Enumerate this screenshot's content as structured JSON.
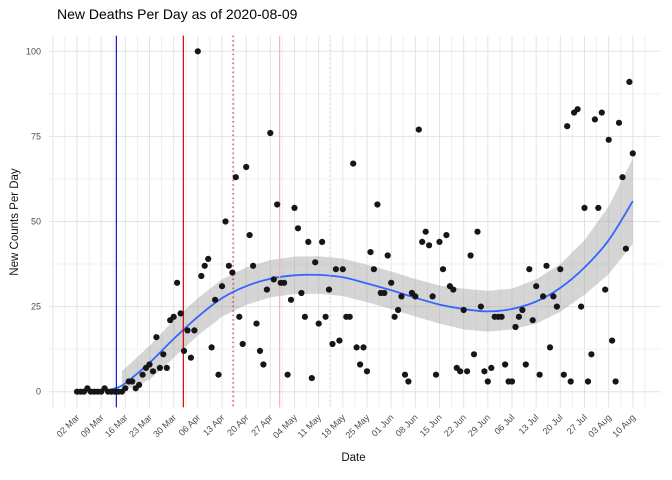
{
  "chart_data": {
    "type": "scatter",
    "title": "New Deaths Per Day as of 2020-08-09",
    "xlabel": "Date",
    "ylabel": "New Counts Per Day",
    "x_unit": "days since 02 Mar 2020, one point per day",
    "x_tick_labels": [
      "02 Mar",
      "09 Mar",
      "16 Mar",
      "23 Mar",
      "30 Mar",
      "06 Apr",
      "13 Apr",
      "20 Apr",
      "27 Apr",
      "04 May",
      "11 May",
      "18 May",
      "25 May",
      "01 Jun",
      "08 Jun",
      "15 Jun",
      "22 Jun",
      "29 Jun",
      "06 Jul",
      "13 Jul",
      "20 Jul",
      "27 Jul",
      "03 Aug",
      "10 Aug"
    ],
    "y_tick_labels": [
      "0",
      "25",
      "50",
      "75",
      "100"
    ],
    "y_ticks": [
      0,
      25,
      50,
      75,
      100
    ],
    "ylim": [
      -5,
      105
    ],
    "grid": {
      "major_color": "#e3e3e3",
      "minor_color": "#f0f0f0",
      "background": "#ffffff"
    },
    "point_color": "#161616",
    "points_day_value": [
      [
        0,
        0
      ],
      [
        1,
        0
      ],
      [
        2,
        0
      ],
      [
        3,
        1
      ],
      [
        4,
        0
      ],
      [
        5,
        0
      ],
      [
        6,
        0
      ],
      [
        7,
        0
      ],
      [
        8,
        1
      ],
      [
        9,
        0
      ],
      [
        10,
        0
      ],
      [
        11,
        0
      ],
      [
        12,
        0
      ],
      [
        13,
        0
      ],
      [
        14,
        1
      ],
      [
        15,
        3
      ],
      [
        16,
        3
      ],
      [
        17,
        1
      ],
      [
        18,
        2
      ],
      [
        19,
        5
      ],
      [
        20,
        7
      ],
      [
        21,
        8
      ],
      [
        22,
        6
      ],
      [
        23,
        16
      ],
      [
        24,
        7
      ],
      [
        25,
        11
      ],
      [
        26,
        7
      ],
      [
        27,
        21
      ],
      [
        28,
        22
      ],
      [
        29,
        32
      ],
      [
        30,
        23
      ],
      [
        31,
        12
      ],
      [
        32,
        18
      ],
      [
        33,
        10
      ],
      [
        34,
        18
      ],
      [
        35,
        100
      ],
      [
        36,
        34
      ],
      [
        37,
        37
      ],
      [
        38,
        39
      ],
      [
        39,
        13
      ],
      [
        40,
        27
      ],
      [
        41,
        5
      ],
      [
        42,
        31
      ],
      [
        43,
        50
      ],
      [
        44,
        37
      ],
      [
        45,
        35
      ],
      [
        46,
        63
      ],
      [
        47,
        22
      ],
      [
        48,
        14
      ],
      [
        49,
        66
      ],
      [
        50,
        46
      ],
      [
        51,
        37
      ],
      [
        52,
        20
      ],
      [
        53,
        12
      ],
      [
        54,
        8
      ],
      [
        55,
        30
      ],
      [
        56,
        76
      ],
      [
        57,
        33
      ],
      [
        58,
        55
      ],
      [
        59,
        32
      ],
      [
        60,
        32
      ],
      [
        61,
        5
      ],
      [
        62,
        27
      ],
      [
        63,
        54
      ],
      [
        64,
        48
      ],
      [
        65,
        29
      ],
      [
        66,
        22
      ],
      [
        67,
        44
      ],
      [
        68,
        4
      ],
      [
        69,
        38
      ],
      [
        70,
        20
      ],
      [
        71,
        44
      ],
      [
        72,
        22
      ],
      [
        73,
        30
      ],
      [
        74,
        14
      ],
      [
        75,
        36
      ],
      [
        76,
        15
      ],
      [
        77,
        36
      ],
      [
        78,
        22
      ],
      [
        79,
        22
      ],
      [
        80,
        67
      ],
      [
        81,
        13
      ],
      [
        82,
        8
      ],
      [
        83,
        13
      ],
      [
        84,
        6
      ],
      [
        85,
        41
      ],
      [
        86,
        36
      ],
      [
        87,
        55
      ],
      [
        88,
        29
      ],
      [
        89,
        29
      ],
      [
        90,
        40
      ],
      [
        91,
        32
      ],
      [
        92,
        22
      ],
      [
        93,
        24
      ],
      [
        94,
        28
      ],
      [
        95,
        5
      ],
      [
        96,
        3
      ],
      [
        97,
        29
      ],
      [
        98,
        28
      ],
      [
        99,
        77
      ],
      [
        100,
        44
      ],
      [
        101,
        47
      ],
      [
        102,
        43
      ],
      [
        103,
        28
      ],
      [
        104,
        5
      ],
      [
        105,
        44
      ],
      [
        106,
        36
      ],
      [
        107,
        46
      ],
      [
        108,
        31
      ],
      [
        109,
        30
      ],
      [
        110,
        7
      ],
      [
        111,
        6
      ],
      [
        112,
        24
      ],
      [
        113,
        6
      ],
      [
        114,
        40
      ],
      [
        115,
        11
      ],
      [
        116,
        47
      ],
      [
        117,
        25
      ],
      [
        118,
        6
      ],
      [
        119,
        3
      ],
      [
        120,
        7
      ],
      [
        121,
        22
      ],
      [
        122,
        22
      ],
      [
        123,
        22
      ],
      [
        124,
        8
      ],
      [
        125,
        3
      ],
      [
        126,
        3
      ],
      [
        127,
        19
      ],
      [
        128,
        22
      ],
      [
        129,
        24
      ],
      [
        130,
        8
      ],
      [
        131,
        36
      ],
      [
        132,
        21
      ],
      [
        133,
        31
      ],
      [
        134,
        5
      ],
      [
        135,
        28
      ],
      [
        136,
        37
      ],
      [
        137,
        13
      ],
      [
        138,
        28
      ],
      [
        139,
        25
      ],
      [
        140,
        36
      ],
      [
        141,
        5
      ],
      [
        142,
        78
      ],
      [
        143,
        3
      ],
      [
        144,
        82
      ],
      [
        145,
        83
      ],
      [
        146,
        25
      ],
      [
        147,
        54
      ],
      [
        148,
        3
      ],
      [
        149,
        11
      ],
      [
        150,
        80
      ],
      [
        151,
        54
      ],
      [
        152,
        82
      ],
      [
        153,
        30
      ],
      [
        154,
        74
      ],
      [
        155,
        15
      ],
      [
        156,
        3
      ],
      [
        157,
        79
      ],
      [
        158,
        63
      ],
      [
        159,
        42
      ],
      [
        160,
        91
      ],
      [
        161,
        70
      ]
    ],
    "smooth_line": {
      "color": "#3366ff",
      "knots_day_value": [
        [
          0,
          0
        ],
        [
          7,
          0.2
        ],
        [
          11,
          1
        ],
        [
          14,
          2.5
        ],
        [
          21,
          8.5
        ],
        [
          28,
          15.5
        ],
        [
          35,
          22
        ],
        [
          42,
          27.5
        ],
        [
          49,
          31
        ],
        [
          56,
          33.2
        ],
        [
          63,
          34.2
        ],
        [
          70,
          34.3
        ],
        [
          77,
          33.6
        ],
        [
          84,
          31.8
        ],
        [
          91,
          29.8
        ],
        [
          98,
          27.6
        ],
        [
          105,
          25.6
        ],
        [
          112,
          24.3
        ],
        [
          119,
          23.6
        ],
        [
          126,
          24.3
        ],
        [
          133,
          26.5
        ],
        [
          140,
          30.5
        ],
        [
          147,
          36.5
        ],
        [
          154,
          44.5
        ],
        [
          161,
          56
        ]
      ]
    },
    "ribbon": {
      "color": "#9a9a9a",
      "opacity": 0.42,
      "knots_day_lo_hi": [
        [
          13,
          0,
          6
        ],
        [
          21,
          3.5,
          13.5
        ],
        [
          28,
          10,
          21
        ],
        [
          35,
          16.5,
          27.5
        ],
        [
          42,
          22,
          33
        ],
        [
          49,
          25.5,
          36.5
        ],
        [
          56,
          27.7,
          38.7
        ],
        [
          63,
          28.7,
          39.7
        ],
        [
          70,
          28.8,
          39.8
        ],
        [
          77,
          28.1,
          39.1
        ],
        [
          84,
          26.3,
          37.3
        ],
        [
          91,
          24.3,
          35.3
        ],
        [
          98,
          22.1,
          33.1
        ],
        [
          105,
          20,
          31.2
        ],
        [
          112,
          18.3,
          30.3
        ],
        [
          119,
          17.6,
          29.6
        ],
        [
          126,
          18.3,
          30.3
        ],
        [
          133,
          20,
          33
        ],
        [
          140,
          23.5,
          37.5
        ],
        [
          147,
          28.5,
          44.5
        ],
        [
          154,
          34.5,
          54.5
        ],
        [
          161,
          43.5,
          68.5
        ]
      ]
    },
    "vlines": [
      {
        "day": 11.4,
        "approx_date": "13 Mar",
        "color": "#1414cc",
        "dash": "solid"
      },
      {
        "day": 30.8,
        "approx_date": "02 Apr",
        "color": "#dd0000",
        "dash": "solid"
      },
      {
        "day": 45.2,
        "approx_date": "16 Apr",
        "color": "#dd0000",
        "dash": "dotted"
      },
      {
        "day": 58.7,
        "approx_date": "30 Apr",
        "color": "#f5aebf",
        "dash": "solid"
      },
      {
        "day": 73.2,
        "approx_date": "14 May",
        "color": "#f8c6d1",
        "dash": "dotted"
      }
    ],
    "tick_label_color": "#4d4d4d"
  }
}
